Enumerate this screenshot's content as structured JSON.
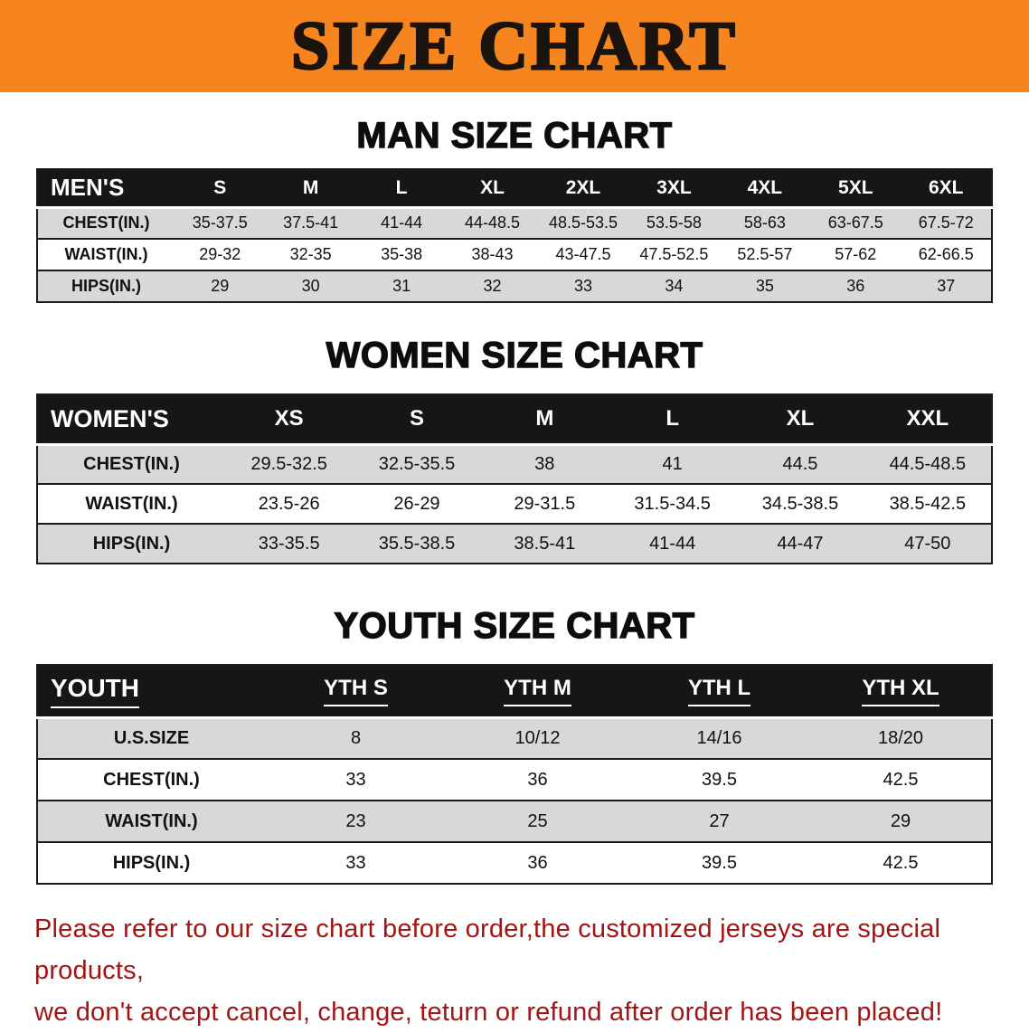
{
  "banner": {
    "title": "SIZE CHART",
    "bg_color": "#F6851F"
  },
  "sections": [
    {
      "id": "men",
      "heading": "MAN SIZE CHART",
      "table": {
        "header": [
          "MEN'S",
          "S",
          "M",
          "L",
          "XL",
          "2XL",
          "3XL",
          "4XL",
          "5XL",
          "6XL"
        ],
        "rows": [
          {
            "label": "CHEST(IN.)",
            "shaded": true,
            "values": [
              "35-37.5",
              "37.5-41",
              "41-44",
              "44-48.5",
              "48.5-53.5",
              "53.5-58",
              "58-63",
              "63-67.5",
              "67.5-72"
            ]
          },
          {
            "label": "WAIST(IN.)",
            "shaded": false,
            "values": [
              "29-32",
              "32-35",
              "35-38",
              "38-43",
              "43-47.5",
              "47.5-52.5",
              "52.5-57",
              "57-62",
              "62-66.5"
            ]
          },
          {
            "label": "HIPS(IN.)",
            "shaded": true,
            "values": [
              "29",
              "30",
              "31",
              "32",
              "33",
              "34",
              "35",
              "36",
              "37"
            ]
          }
        ]
      }
    },
    {
      "id": "women",
      "heading": "WOMEN SIZE CHART",
      "table": {
        "header": [
          "WOMEN'S",
          "XS",
          "S",
          "M",
          "L",
          "XL",
          "XXL"
        ],
        "rows": [
          {
            "label": "CHEST(IN.)",
            "shaded": true,
            "values": [
              "29.5-32.5",
              "32.5-35.5",
              "38",
              "41",
              "44.5",
              "44.5-48.5"
            ]
          },
          {
            "label": "WAIST(IN.)",
            "shaded": false,
            "values": [
              "23.5-26",
              "26-29",
              "29-31.5",
              "31.5-34.5",
              "34.5-38.5",
              "38.5-42.5"
            ]
          },
          {
            "label": "HIPS(IN.)",
            "shaded": true,
            "values": [
              "33-35.5",
              "35.5-38.5",
              "38.5-41",
              "41-44",
              "44-47",
              "47-50"
            ]
          }
        ]
      }
    },
    {
      "id": "youth",
      "heading": "YOUTH SIZE CHART",
      "table": {
        "header": [
          "YOUTH",
          "YTH S",
          "YTH M",
          "YTH L",
          "YTH XL"
        ],
        "rows": [
          {
            "label": "U.S.SIZE",
            "shaded": true,
            "values": [
              "8",
              "10/12",
              "14/16",
              "18/20"
            ]
          },
          {
            "label": "CHEST(IN.)",
            "shaded": false,
            "values": [
              "33",
              "36",
              "39.5",
              "42.5"
            ]
          },
          {
            "label": "WAIST(IN.)",
            "shaded": true,
            "values": [
              "23",
              "25",
              "27",
              "29"
            ]
          },
          {
            "label": "HIPS(IN.)",
            "shaded": false,
            "values": [
              "33",
              "36",
              "39.5",
              "42.5"
            ]
          }
        ]
      }
    }
  ],
  "disclaimer": {
    "color": "#A31515",
    "lines": [
      "Please refer to our size chart before order,the customized jerseys are special products,",
      "we don't accept cancel, change, teturn or refund after order has been placed!"
    ]
  }
}
